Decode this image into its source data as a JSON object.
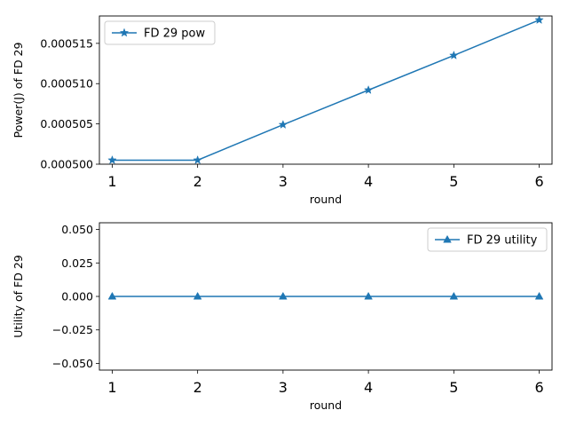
{
  "chart_data": [
    {
      "type": "line",
      "x": [
        1,
        2,
        3,
        4,
        5,
        6
      ],
      "series": [
        {
          "name": "FD 29 pow",
          "values": [
            0.0005005,
            0.0005005,
            0.0005049,
            0.0005092,
            0.0005135,
            0.0005179
          ],
          "marker": "star",
          "color": "#1f77b4"
        }
      ],
      "xlabel": "round",
      "ylabel": "Power(J) of FD 29",
      "xlim": [
        0.85,
        6.15
      ],
      "ylim": [
        0.0005,
        0.0005184
      ],
      "xticks": [
        1,
        2,
        3,
        4,
        5,
        6
      ],
      "xtick_labels": [
        "1",
        "2",
        "3",
        "4",
        "5",
        "6"
      ],
      "yticks": [
        0.0005,
        0.000505,
        0.00051,
        0.000515
      ],
      "ytick_labels": [
        "0.000500",
        "0.000505",
        "0.000510",
        "0.000515"
      ],
      "legend": "top-left",
      "grid": false
    },
    {
      "type": "line",
      "x": [
        1,
        2,
        3,
        4,
        5,
        6
      ],
      "series": [
        {
          "name": "FD 29 utility",
          "values": [
            0,
            0,
            0,
            0,
            0,
            0
          ],
          "marker": "triangle",
          "color": "#1f77b4"
        }
      ],
      "xlabel": "round",
      "ylabel": "Utility of FD 29",
      "xlim": [
        0.85,
        6.15
      ],
      "ylim": [
        -0.055,
        0.055
      ],
      "xticks": [
        1,
        2,
        3,
        4,
        5,
        6
      ],
      "xtick_labels": [
        "1",
        "2",
        "3",
        "4",
        "5",
        "6"
      ],
      "yticks": [
        -0.05,
        -0.025,
        0,
        0.025,
        0.05
      ],
      "ytick_labels": [
        "−0.050",
        "−0.025",
        "0.000",
        "0.025",
        "0.050"
      ],
      "legend": "top-right",
      "grid": false
    }
  ]
}
